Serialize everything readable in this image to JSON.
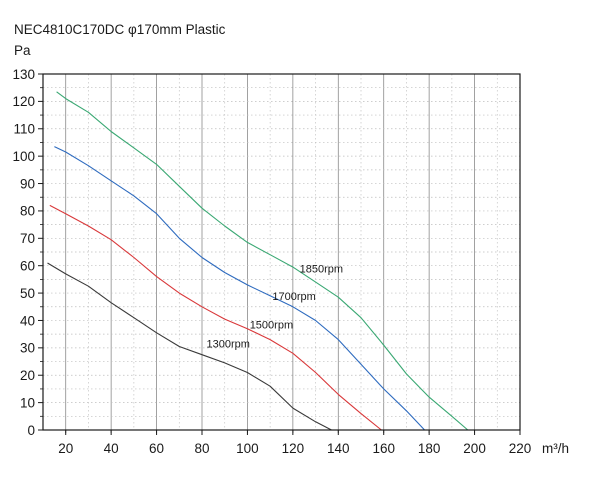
{
  "chart_data": {
    "type": "line",
    "title": "NEC4810C170DC φ170mm Plastic",
    "ylabel": "Pa",
    "xlabel": "m³/h",
    "xlim": [
      10,
      220
    ],
    "ylim": [
      0,
      130
    ],
    "x_ticks": [
      20,
      40,
      60,
      80,
      100,
      120,
      140,
      160,
      180,
      200,
      220
    ],
    "y_ticks": [
      0,
      10,
      20,
      30,
      40,
      50,
      60,
      70,
      80,
      90,
      100,
      110,
      120,
      130
    ],
    "grid": true,
    "series": [
      {
        "name": "1300rpm",
        "color": "#3a3a3a",
        "points": [
          [
            12,
            61
          ],
          [
            20,
            57
          ],
          [
            30,
            52.5
          ],
          [
            40,
            46.5
          ],
          [
            50,
            41
          ],
          [
            60,
            35.5
          ],
          [
            70,
            30.5
          ],
          [
            80,
            27.5
          ],
          [
            90,
            24.5
          ],
          [
            100,
            21
          ],
          [
            110,
            16
          ],
          [
            120,
            8
          ],
          [
            130,
            3
          ],
          [
            137,
            0
          ]
        ]
      },
      {
        "name": "1500rpm",
        "color": "#d9383a",
        "points": [
          [
            13,
            82
          ],
          [
            20,
            79
          ],
          [
            30,
            74.5
          ],
          [
            40,
            69.5
          ],
          [
            50,
            63
          ],
          [
            60,
            56
          ],
          [
            70,
            50
          ],
          [
            80,
            45
          ],
          [
            90,
            40.5
          ],
          [
            100,
            37
          ],
          [
            110,
            33
          ],
          [
            120,
            28
          ],
          [
            130,
            21
          ],
          [
            140,
            13
          ],
          [
            150,
            6
          ],
          [
            159,
            0
          ]
        ]
      },
      {
        "name": "1700rpm",
        "color": "#2e6bbf",
        "points": [
          [
            15,
            103.5
          ],
          [
            20,
            101.5
          ],
          [
            30,
            96.5
          ],
          [
            40,
            91
          ],
          [
            50,
            85.5
          ],
          [
            60,
            79
          ],
          [
            70,
            70
          ],
          [
            80,
            63
          ],
          [
            90,
            57.5
          ],
          [
            100,
            53
          ],
          [
            110,
            49
          ],
          [
            120,
            45
          ],
          [
            130,
            40
          ],
          [
            140,
            33
          ],
          [
            150,
            24
          ],
          [
            160,
            15
          ],
          [
            170,
            7
          ],
          [
            178,
            0
          ]
        ]
      },
      {
        "name": "1850rpm",
        "color": "#3aa873",
        "points": [
          [
            16,
            123.5
          ],
          [
            20,
            121
          ],
          [
            30,
            116
          ],
          [
            40,
            109
          ],
          [
            50,
            103
          ],
          [
            60,
            97
          ],
          [
            70,
            89
          ],
          [
            80,
            81
          ],
          [
            90,
            74.5
          ],
          [
            100,
            68.5
          ],
          [
            110,
            64
          ],
          [
            120,
            59.5
          ],
          [
            130,
            54
          ],
          [
            140,
            48.5
          ],
          [
            150,
            41
          ],
          [
            160,
            31
          ],
          [
            170,
            20.5
          ],
          [
            180,
            12
          ],
          [
            190,
            5
          ],
          [
            197,
            0
          ]
        ]
      }
    ]
  }
}
